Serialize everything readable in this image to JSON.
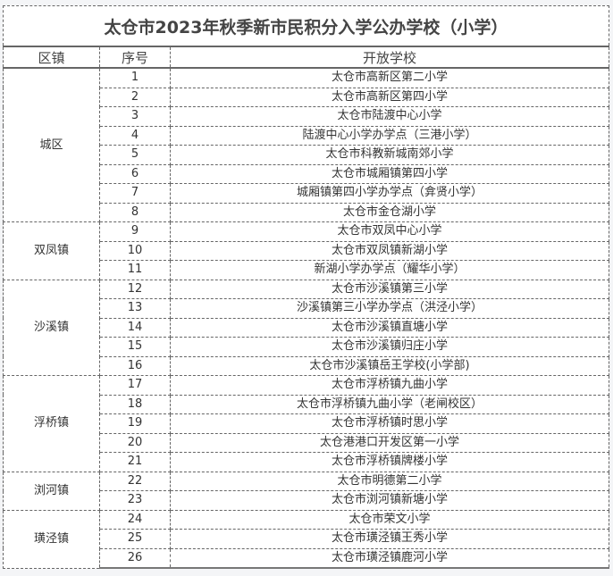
{
  "title": "太仓市2023年秋季新市民积分入学公办学校（小学）",
  "headers": [
    "区镇",
    "序号",
    "开放学校"
  ],
  "groups": [
    {
      "district": "城区",
      "rows": [
        [
          "1",
          "太仓市高新区第二小学"
        ],
        [
          "2",
          "太仓市高新区第四小学"
        ],
        [
          "3",
          "太仓市陆渡中心小学"
        ],
        [
          "4",
          "陆渡中心小学办学点（三港小学）"
        ],
        [
          "5",
          "太仓市科教新城南郊小学"
        ],
        [
          "6",
          "太仓市城厢镇第四小学"
        ],
        [
          "7",
          "城厢镇第四小学办学点（弇贤小学）"
        ],
        [
          "8",
          "太仓市金仓湖小学"
        ]
      ]
    },
    {
      "district": "双凤镇",
      "rows": [
        [
          "9",
          "太仓市双凤中心小学"
        ],
        [
          "10",
          "太仓市双凤镇新湖小学"
        ],
        [
          "11",
          "新湖小学办学点（耀华小学）"
        ]
      ]
    },
    {
      "district": "沙溪镇",
      "rows": [
        [
          "12",
          "太仓市沙溪镇第三小学"
        ],
        [
          "13",
          "沙溪镇第三小学办学点（洪泾小学）"
        ],
        [
          "14",
          "太仓市沙溪镇直塘小学"
        ],
        [
          "15",
          "太仓市沙溪镇归庄小学"
        ],
        [
          "16",
          "太仓市沙溪镇岳王学校(小学部)"
        ]
      ]
    },
    {
      "district": "浮桥镇",
      "rows": [
        [
          "17",
          "太仓市浮桥镇九曲小学"
        ],
        [
          "18",
          "太仓市浮桥镇九曲小学（老闸校区）"
        ],
        [
          "19",
          "太仓市浮桥镇时思小学"
        ],
        [
          "20",
          "太仓港港口开发区第一小学"
        ],
        [
          "21",
          "太仓市浮桥镇牌楼小学"
        ]
      ]
    },
    {
      "district": "浏河镇",
      "rows": [
        [
          "22",
          "太仓市明德第二小学"
        ],
        [
          "23",
          "太仓市浏河镇新塘小学"
        ]
      ]
    },
    {
      "district": "璜泾镇",
      "rows": [
        [
          "24",
          "太仓市荣文小学"
        ],
        [
          "25",
          "太仓市璜泾镇王秀小学"
        ],
        [
          "26",
          "太仓市璜泾镇鹿河小学"
        ]
      ]
    }
  ]
}
